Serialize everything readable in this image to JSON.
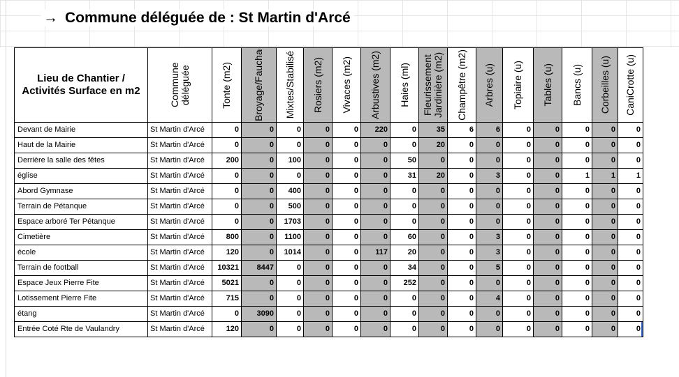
{
  "title": {
    "arrow": "→",
    "text": "Commune déléguée de : St Martin d'Arcé"
  },
  "headers": [
    "Lieu de Chantier / Activités Surface en m2",
    "Commune déléguée",
    "Tonte (m2)",
    "Broyage/Fauchage",
    "Mixtes/Stabilisé",
    "Rosiers (m2)",
    "Vivaces (m2)",
    "Arbustives (m2)",
    "Haies (ml)",
    "Fleurissement Jardinière (m2)",
    "Champêtre (m2)",
    "Arbres (u)",
    "Topiaire (u)",
    "Tables (u)",
    "Bancs (u)",
    "Corbeilles (u)",
    "CaniCrotte (u)"
  ],
  "rows": [
    {
      "name": "Devant de Mairie",
      "commune": "St Martin d'Arcé",
      "values": [
        "0",
        "0",
        "0",
        "0",
        "0",
        "220",
        "0",
        "35",
        "6",
        "6",
        "0",
        "0",
        "0",
        "0",
        "0"
      ]
    },
    {
      "name": "Haut de la Mairie",
      "commune": "St Martin d'Arcé",
      "values": [
        "0",
        "0",
        "0",
        "0",
        "0",
        "0",
        "0",
        "20",
        "0",
        "0",
        "0",
        "0",
        "0",
        "0",
        "0"
      ]
    },
    {
      "name": "Derrière la salle des fêtes",
      "commune": "St Martin d'Arcé",
      "values": [
        "200",
        "0",
        "100",
        "0",
        "0",
        "0",
        "50",
        "0",
        "0",
        "0",
        "0",
        "0",
        "0",
        "0",
        "0"
      ]
    },
    {
      "name": "église",
      "commune": "St Martin d'Arcé",
      "values": [
        "0",
        "0",
        "0",
        "0",
        "0",
        "0",
        "31",
        "20",
        "0",
        "3",
        "0",
        "0",
        "1",
        "1",
        "1"
      ]
    },
    {
      "name": "Abord Gymnase",
      "commune": "St Martin d'Arcé",
      "values": [
        "0",
        "0",
        "400",
        "0",
        "0",
        "0",
        "0",
        "0",
        "0",
        "0",
        "0",
        "0",
        "0",
        "0",
        "0"
      ]
    },
    {
      "name": "Terrain de Pétanque",
      "commune": "St Martin d'Arcé",
      "values": [
        "0",
        "0",
        "500",
        "0",
        "0",
        "0",
        "0",
        "0",
        "0",
        "0",
        "0",
        "0",
        "0",
        "0",
        "0"
      ]
    },
    {
      "name": "Espace arboré Ter Pétanque",
      "commune": "St Martin d'Arcé",
      "values": [
        "0",
        "0",
        "1703",
        "0",
        "0",
        "0",
        "0",
        "0",
        "0",
        "0",
        "0",
        "0",
        "0",
        "0",
        "0"
      ]
    },
    {
      "name": "Cimetière",
      "commune": "St Martin d'Arcé",
      "values": [
        "800",
        "0",
        "1100",
        "0",
        "0",
        "0",
        "60",
        "0",
        "0",
        "3",
        "0",
        "0",
        "0",
        "0",
        "0"
      ]
    },
    {
      "name": "école",
      "commune": "St Martin d'Arcé",
      "values": [
        "120",
        "0",
        "1014",
        "0",
        "0",
        "117",
        "20",
        "0",
        "0",
        "3",
        "0",
        "0",
        "0",
        "0",
        "0"
      ]
    },
    {
      "name": "Terrain de football",
      "commune": "St Martin d'Arcé",
      "values": [
        "10321",
        "8447",
        "0",
        "0",
        "0",
        "0",
        "34",
        "0",
        "0",
        "5",
        "0",
        "0",
        "0",
        "0",
        "0"
      ]
    },
    {
      "name": "Espace Jeux Pierre Fite",
      "commune": "St Martin d'Arcé",
      "values": [
        "5021",
        "0",
        "0",
        "0",
        "0",
        "0",
        "252",
        "0",
        "0",
        "0",
        "0",
        "0",
        "0",
        "0",
        "0"
      ]
    },
    {
      "name": "Lotissement Pierre Fite",
      "commune": "St Martin d'Arcé",
      "values": [
        "715",
        "0",
        "0",
        "0",
        "0",
        "0",
        "0",
        "0",
        "0",
        "4",
        "0",
        "0",
        "0",
        "0",
        "0"
      ]
    },
    {
      "name": "étang",
      "commune": "St Martin d'Arcé",
      "values": [
        "0",
        "3090",
        "0",
        "0",
        "0",
        "0",
        "0",
        "0",
        "0",
        "0",
        "0",
        "0",
        "0",
        "0",
        "0"
      ]
    },
    {
      "name": "Entrée Coté Rte de Vaulandry",
      "commune": "St Martin d'Arcé",
      "values": [
        "120",
        "0",
        "0",
        "0",
        "0",
        "0",
        "0",
        "0",
        "0",
        "0",
        "0",
        "0",
        "0",
        "0",
        "0"
      ]
    }
  ],
  "colors": {
    "gray_column": "#b9b9b9",
    "selection": "#2a6ad6"
  }
}
